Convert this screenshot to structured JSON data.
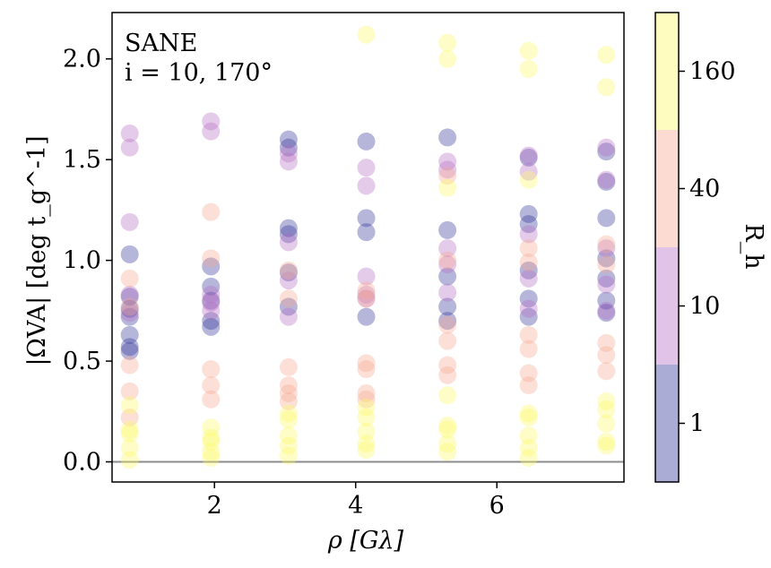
{
  "chart_data": {
    "type": "scatter",
    "title": "",
    "annotation": [
      "SANE",
      "i = 10, 170°"
    ],
    "xlabel": "ρ  [Gλ]",
    "ylabel": "|ΩVA| [deg t_g^-1]",
    "xlim": [
      0.55,
      7.8
    ],
    "ylim": [
      -0.1,
      2.23
    ],
    "xticks": [
      2,
      4,
      6
    ],
    "xtick_labels": [
      "2",
      "4",
      "6"
    ],
    "yticks": [
      0.0,
      0.5,
      1.0,
      1.5,
      2.0
    ],
    "ytick_labels": [
      "0.0",
      "0.5",
      "1.0",
      "1.5",
      "2.0"
    ],
    "reference_line_y": 0.0,
    "colorbar": {
      "label": "R_h",
      "levels": [
        "1",
        "10",
        "40",
        "160"
      ],
      "colors": [
        "#2a2f96",
        "#b569c2",
        "#f7a78f",
        "#fdfa60"
      ]
    },
    "series": [
      {
        "name": "R_h = 1",
        "color": "#2a2f96",
        "x": [
          0.8,
          0.8,
          0.8,
          0.8,
          0.8,
          0.8,
          0.8,
          1.95,
          1.95,
          1.95,
          1.95,
          1.95,
          3.05,
          3.05,
          3.05,
          3.05,
          3.05,
          3.05,
          4.15,
          4.15,
          4.15,
          4.15,
          5.3,
          5.3,
          5.3,
          5.3,
          5.3,
          6.45,
          6.45,
          6.45,
          6.45,
          6.45,
          6.45,
          7.55,
          7.55,
          7.55,
          7.55,
          7.55,
          7.55,
          7.55
        ],
        "y": [
          1.03,
          0.82,
          0.76,
          0.72,
          0.63,
          0.57,
          0.55,
          0.97,
          0.87,
          0.8,
          0.7,
          0.67,
          1.6,
          1.56,
          1.16,
          1.13,
          0.94,
          0.77,
          1.59,
          1.21,
          1.14,
          0.72,
          1.61,
          1.15,
          0.92,
          0.77,
          0.7,
          1.51,
          1.23,
          1.18,
          0.95,
          0.81,
          0.72,
          1.54,
          1.39,
          1.21,
          1.01,
          0.91,
          0.8,
          0.74
        ]
      },
      {
        "name": "R_h = 10",
        "color": "#b569c2",
        "x": [
          0.8,
          0.8,
          0.8,
          0.8,
          0.8,
          1.95,
          1.95,
          1.95,
          1.95,
          1.95,
          3.05,
          3.05,
          3.05,
          3.05,
          3.05,
          4.15,
          4.15,
          4.15,
          4.15,
          4.15,
          5.3,
          5.3,
          5.3,
          5.3,
          5.3,
          6.45,
          6.45,
          6.45,
          6.45,
          6.45,
          7.55,
          7.55,
          7.55,
          7.55,
          7.55
        ],
        "y": [
          1.63,
          1.56,
          1.19,
          0.83,
          0.74,
          1.69,
          1.64,
          0.83,
          0.79,
          0.75,
          1.53,
          1.49,
          1.09,
          0.9,
          0.72,
          1.46,
          1.37,
          0.92,
          0.83,
          0.81,
          1.49,
          1.45,
          1.06,
          0.98,
          0.84,
          1.52,
          1.44,
          1.13,
          0.91,
          0.76,
          1.56,
          1.4,
          1.06,
          0.88,
          0.75
        ]
      },
      {
        "name": "R_h = 40",
        "color": "#f7a78f",
        "x": [
          0.8,
          0.8,
          0.8,
          0.8,
          0.8,
          1.95,
          1.95,
          1.95,
          1.95,
          1.95,
          3.05,
          3.05,
          3.05,
          3.05,
          3.05,
          3.05,
          4.15,
          4.15,
          4.15,
          4.15,
          4.15,
          4.15,
          5.3,
          5.3,
          5.3,
          5.3,
          5.3,
          5.3,
          6.45,
          6.45,
          6.45,
          6.45,
          6.45,
          6.45,
          7.55,
          7.55,
          7.55,
          7.55,
          7.55
        ],
        "y": [
          0.91,
          0.77,
          0.48,
          0.35,
          0.22,
          1.24,
          1.01,
          0.46,
          0.38,
          0.31,
          0.95,
          0.81,
          0.47,
          0.38,
          0.34,
          0.3,
          0.85,
          0.81,
          0.49,
          0.46,
          0.34,
          0.31,
          1.42,
          1.0,
          0.68,
          0.6,
          0.48,
          0.43,
          1.06,
          0.99,
          0.63,
          0.56,
          0.44,
          0.38,
          1.08,
          0.98,
          0.59,
          0.53,
          0.45
        ]
      },
      {
        "name": "R_h = 160",
        "color": "#fdfa60",
        "x": [
          0.8,
          0.8,
          0.8,
          0.8,
          0.8,
          1.95,
          1.95,
          1.95,
          1.95,
          1.95,
          3.05,
          3.05,
          3.05,
          3.05,
          3.05,
          4.15,
          4.15,
          4.15,
          4.15,
          4.15,
          5.3,
          5.3,
          5.3,
          5.3,
          5.3,
          6.45,
          6.45,
          6.45,
          6.45,
          6.45,
          7.55,
          7.55,
          7.55,
          7.55,
          7.55,
          4.15,
          5.3,
          6.45,
          5.3,
          6.45,
          5.3,
          6.45,
          7.55,
          7.55
        ],
        "y": [
          0.28,
          0.16,
          0.14,
          0.07,
          0.01,
          0.17,
          0.12,
          0.1,
          0.05,
          0.02,
          0.24,
          0.21,
          0.13,
          0.08,
          0.03,
          0.27,
          0.22,
          0.15,
          0.09,
          0.06,
          0.33,
          0.18,
          0.16,
          0.09,
          0.05,
          0.24,
          0.22,
          0.13,
          0.07,
          0.02,
          0.3,
          0.26,
          0.19,
          0.1,
          0.08,
          2.12,
          2.08,
          2.04,
          2.0,
          1.95,
          1.36,
          1.4,
          2.02,
          1.86
        ]
      }
    ]
  }
}
